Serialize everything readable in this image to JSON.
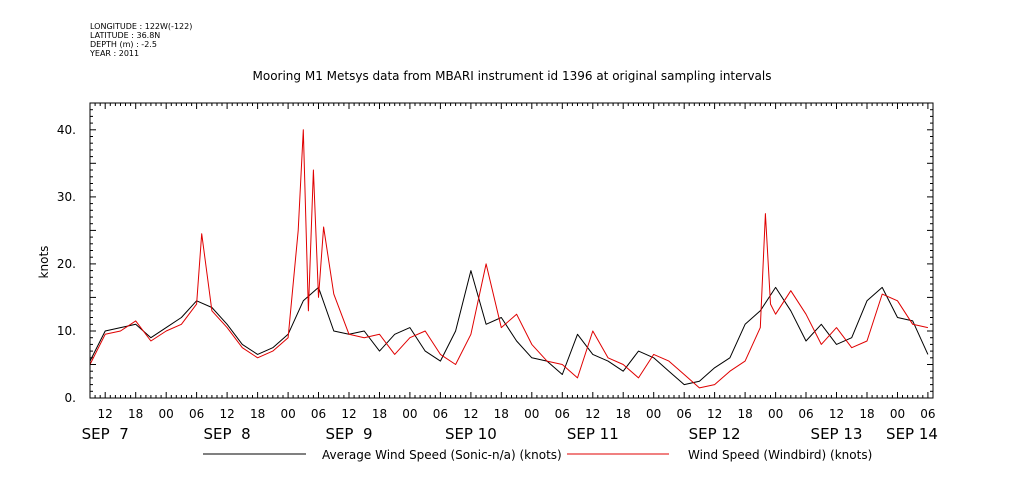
{
  "header": {
    "meta_lines": [
      "LONGITUDE : 122W(-122)",
      "LATITUDE : 36.8N",
      "DEPTH (m) : -2.5",
      "YEAR : 2011"
    ]
  },
  "chart_data": {
    "type": "line",
    "title": "Mooring M1 Metsys data from MBARI instrument id 1396 at original sampling intervals",
    "xlabel": "",
    "ylabel": "knots",
    "ylim": [
      0,
      44
    ],
    "y_ticks": [
      0,
      10,
      20,
      30,
      40
    ],
    "y_tick_labels": [
      "0.",
      "10.",
      "20.",
      "30.",
      "40."
    ],
    "x_hour_ticks": [
      "12",
      "18",
      "00",
      "06",
      "12",
      "18",
      "00",
      "06",
      "12",
      "18",
      "00",
      "06",
      "12",
      "18",
      "00",
      "06",
      "12",
      "18",
      "00",
      "06",
      "12",
      "18",
      "00",
      "06",
      "12",
      "18",
      "00",
      "06"
    ],
    "x_day_labels": [
      "SEP  7",
      "SEP  8",
      "SEP  9",
      "SEP 10",
      "SEP 11",
      "SEP 12",
      "SEP 13",
      "SEP 14"
    ],
    "x_unit": "hours since 2011-09-07 00:00",
    "xlim": [
      9,
      175
    ],
    "grid": false,
    "legend_position": "bottom",
    "series": [
      {
        "name": "Average Wind Speed (Sonic-n/a) (knots)",
        "color": "#000000",
        "x": [
          9,
          12,
          15,
          18,
          21,
          24,
          27,
          30,
          33,
          36,
          39,
          42,
          45,
          48,
          51,
          54,
          57,
          60,
          63,
          66,
          69,
          72,
          75,
          78,
          81,
          84,
          87,
          90,
          93,
          96,
          99,
          102,
          105,
          108,
          111,
          114,
          117,
          120,
          123,
          126,
          129,
          132,
          135,
          138,
          141,
          144,
          147,
          150,
          153,
          156,
          159,
          162,
          165,
          168,
          171,
          174
        ],
        "values": [
          5.5,
          10.0,
          10.5,
          11.0,
          9.0,
          10.5,
          12.0,
          14.5,
          13.5,
          11.0,
          8.0,
          6.5,
          7.5,
          9.5,
          14.5,
          16.5,
          10.0,
          9.5,
          10.0,
          7.0,
          9.5,
          10.5,
          7.0,
          5.5,
          10.0,
          19.0,
          11.0,
          12.0,
          8.5,
          6.0,
          5.5,
          3.5,
          9.5,
          6.5,
          5.5,
          4.0,
          7.0,
          6.0,
          4.0,
          2.0,
          2.5,
          4.5,
          6.0,
          11.0,
          13.0,
          16.5,
          13.0,
          8.5,
          11.0,
          8.0,
          9.0,
          14.5,
          16.5,
          12.0,
          11.5,
          6.5
        ]
      },
      {
        "name": "Wind Speed (Windbird) (knots)",
        "color": "#e00000",
        "x": [
          9,
          12,
          15,
          18,
          21,
          24,
          27,
          30,
          31,
          33,
          36,
          39,
          42,
          45,
          48,
          50,
          51,
          52,
          53,
          54,
          55,
          57,
          60,
          63,
          66,
          69,
          72,
          75,
          78,
          81,
          84,
          87,
          90,
          93,
          96,
          99,
          102,
          105,
          108,
          111,
          114,
          117,
          120,
          123,
          126,
          129,
          132,
          135,
          138,
          141,
          142,
          143,
          144,
          147,
          150,
          153,
          156,
          159,
          162,
          165,
          168,
          171,
          174
        ],
        "values": [
          5.0,
          9.5,
          10.0,
          11.5,
          8.5,
          10.0,
          11.0,
          14.0,
          24.5,
          13.0,
          10.5,
          7.5,
          6.0,
          7.0,
          9.0,
          25.0,
          40.0,
          13.0,
          34.0,
          15.0,
          25.5,
          15.5,
          9.5,
          9.0,
          9.5,
          6.5,
          9.0,
          10.0,
          6.5,
          5.0,
          9.5,
          20.0,
          10.5,
          12.5,
          8.0,
          5.5,
          5.0,
          3.0,
          10.0,
          6.0,
          5.0,
          3.0,
          6.5,
          5.5,
          3.5,
          1.5,
          2.0,
          4.0,
          5.5,
          10.5,
          27.5,
          14.0,
          12.5,
          16.0,
          12.5,
          8.0,
          10.5,
          7.5,
          8.5,
          15.5,
          14.5,
          11.0,
          10.5
        ]
      }
    ]
  }
}
